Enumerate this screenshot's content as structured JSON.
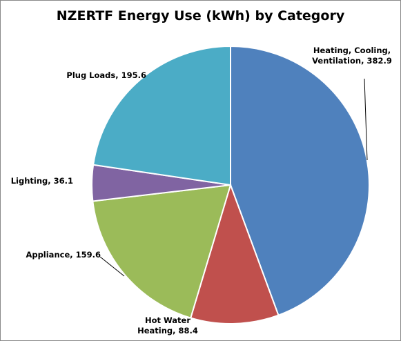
{
  "chart_data": {
    "type": "pie",
    "title": "NZERTF Energy Use (kWh) by Category",
    "values": [
      382.9,
      88.4,
      159.6,
      36.1,
      195.6
    ],
    "value_labels": [
      "Heating, Cooling, Ventilation, 382.9",
      "Hot Water Heating, 88.4",
      "Appliance, 159.6",
      "Lighting, 36.1",
      "Plug Loads, 195.6"
    ],
    "colors": [
      "#4f81bd",
      "#c0504d",
      "#9bbb59",
      "#8064a2",
      "#4bacc6"
    ]
  }
}
